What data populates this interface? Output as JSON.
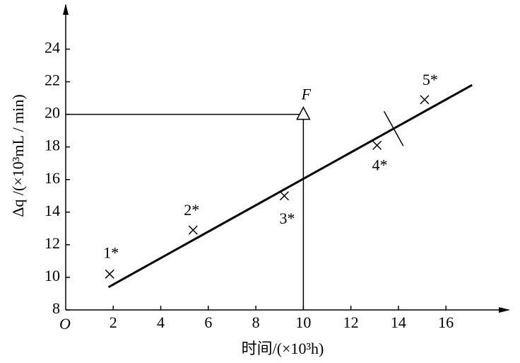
{
  "chart_data": {
    "type": "scatter",
    "xlabel": "时间/(×10³h)",
    "ylabel": "Δq /(×10³mL / min)",
    "origin_label": "O",
    "xlim": [
      0,
      18.7
    ],
    "ylim": [
      8,
      26.8
    ],
    "xticks": [
      2,
      4,
      6,
      8,
      10,
      12,
      14,
      16
    ],
    "yticks": [
      8,
      10,
      12,
      14,
      16,
      18,
      20,
      22,
      24
    ],
    "series": [
      {
        "x": [
          1.85,
          5.36,
          9.2,
          13.1,
          15.1
        ],
        "values": [
          10.2,
          12.9,
          15.0,
          18.1,
          20.9
        ],
        "labels": [
          "1*",
          "2*",
          "3*",
          "4*",
          "5*"
        ],
        "marker": "x",
        "color": "#000000"
      }
    ],
    "fit_line": {
      "x": [
        1.8,
        17.1
      ],
      "values": [
        9.4,
        21.8
      ],
      "color": "#000000"
    },
    "reference_point": {
      "label": "F",
      "x": 10,
      "y": 20
    },
    "break_mark_x": 13.8
  }
}
